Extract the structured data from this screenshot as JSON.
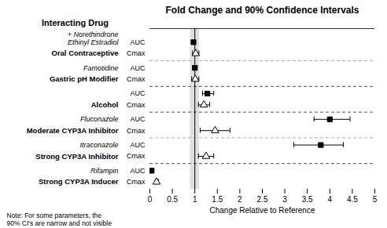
{
  "chart_data": {
    "type": "forest",
    "title": "Fold Change and 90% Confidence Intervals",
    "xlabel": "Change Relative to Reference",
    "ylabel": "Interacting Drug",
    "categories": [
      "Strong CYP3A Inducer",
      "Strong CYP3A Inhibitor",
      "Moderate CYP3A Inhibitor",
      "Alcohol",
      "Gastric pH Modifier",
      "Oral Contraceptive"
    ],
    "subtitles": [
      "Rifampin",
      "Itraconazole",
      "Fluconazole",
      null,
      "Famotidine",
      "Ethinyl Estradiol\n+ Norethindrone"
    ],
    "series": [
      {
        "name": "Cmax",
        "marker": "triangle-open",
        "color": "black",
        "values": [
          0.15,
          1.25,
          1.45,
          1.2,
          1.01,
          1.02
        ],
        "ci_low": [
          0.12,
          1.08,
          1.12,
          1.08,
          0.93,
          0.95
        ],
        "ci_high": [
          0.19,
          1.42,
          1.78,
          1.33,
          1.09,
          1.09
        ]
      },
      {
        "name": "AUC",
        "marker": "square",
        "color": "black",
        "values": [
          0.04,
          3.8,
          4.0,
          1.28,
          1.0,
          0.97
        ],
        "ci_low": [
          0.04,
          3.2,
          3.65,
          1.17,
          0.95,
          0.93
        ],
        "ci_high": [
          0.04,
          4.3,
          4.45,
          1.42,
          1.05,
          1.01
        ]
      }
    ],
    "ref_line": 1.0,
    "shaded_region": [
      0.9,
      1.1
    ],
    "separator_colors": [
      "black",
      "#888888",
      "black",
      "black",
      "#888888"
    ],
    "annotations": [
      "Note: For some parameters, the\n90% CI's are narrow and not visible"
    ],
    "xlim": [
      0.0,
      5.0
    ],
    "xticks": [
      0.0,
      0.5,
      1.0,
      1.5,
      2.0,
      2.5,
      3.0,
      3.5,
      4.0,
      4.5,
      5.0
    ],
    "grid": false
  }
}
